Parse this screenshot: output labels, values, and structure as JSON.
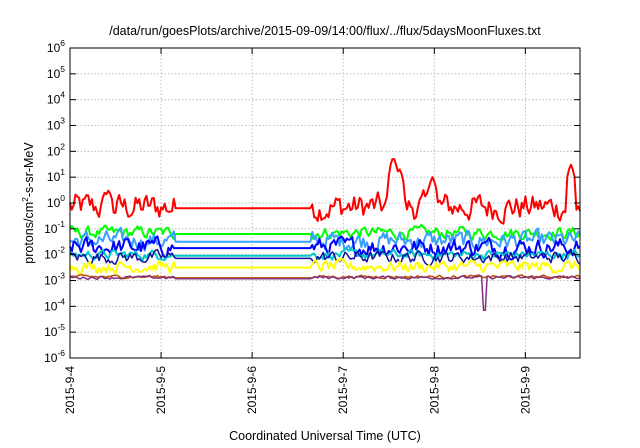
{
  "chart_data": {
    "type": "line",
    "title": "/data/run/goesPlots/archive/2015-09-09/14:00/flux/../flux/5daysMoonFluxes.txt",
    "xlabel": "Coordinated Universal Time (UTC)",
    "ylabel_base": "protons/cm",
    "ylabel_sup": "2",
    "ylabel_rest": "-s-sr-MeV",
    "yscale": "log",
    "ylim": [
      1e-06,
      1000000.0
    ],
    "xlim_days": [
      0,
      5.6
    ],
    "x_tick_labels": [
      "2015-9-4",
      "2015-9-5",
      "2015-9-6",
      "2015-9-7",
      "2015-9-8",
      "2015-9-9"
    ],
    "y_tick_exponents": [
      "-6",
      "-5",
      "-4",
      "-3",
      "-2",
      "-1",
      "0",
      "1",
      "2",
      "3",
      "4",
      "5",
      "6"
    ],
    "y_tick_base": "10",
    "grid": true,
    "data_gap_days": [
      1.15,
      2.65
    ],
    "series": [
      {
        "color": "#ff0000",
        "base": 0.7,
        "noise": 0.45,
        "lw": 2.0,
        "spikes": [
          [
            0.42,
            3
          ],
          [
            3.55,
            60
          ],
          [
            3.62,
            20
          ],
          [
            3.98,
            10
          ],
          [
            5.5,
            30
          ]
        ]
      },
      {
        "color": "#00ff00",
        "base": 0.07,
        "noise": 0.2,
        "lw": 2.0,
        "spikes": []
      },
      {
        "color": "#3aa0ff",
        "base": 0.035,
        "noise": 0.3,
        "lw": 2.0,
        "spikes": []
      },
      {
        "color": "#0000ff",
        "base": 0.02,
        "noise": 0.3,
        "lw": 2.0,
        "spikes": []
      },
      {
        "color": "#00c8c8",
        "base": 0.01,
        "noise": 0.15,
        "lw": 2.0,
        "spikes": []
      },
      {
        "color": "#1010a0",
        "base": 0.008,
        "noise": 0.2,
        "lw": 1.5,
        "spikes": []
      },
      {
        "color": "#ffff00",
        "base": 0.0035,
        "noise": 0.2,
        "lw": 2.0,
        "spikes": []
      },
      {
        "color": "#c05000",
        "base": 0.0014,
        "noise": 0.05,
        "lw": 1.5,
        "spikes": []
      },
      {
        "color": "#803080",
        "base": 0.0013,
        "noise": 0.05,
        "lw": 1.5,
        "dips": [
          [
            2.15,
            0.0007
          ],
          [
            2.5,
            0.0006
          ],
          [
            4.55,
            7e-05
          ]
        ]
      }
    ]
  }
}
